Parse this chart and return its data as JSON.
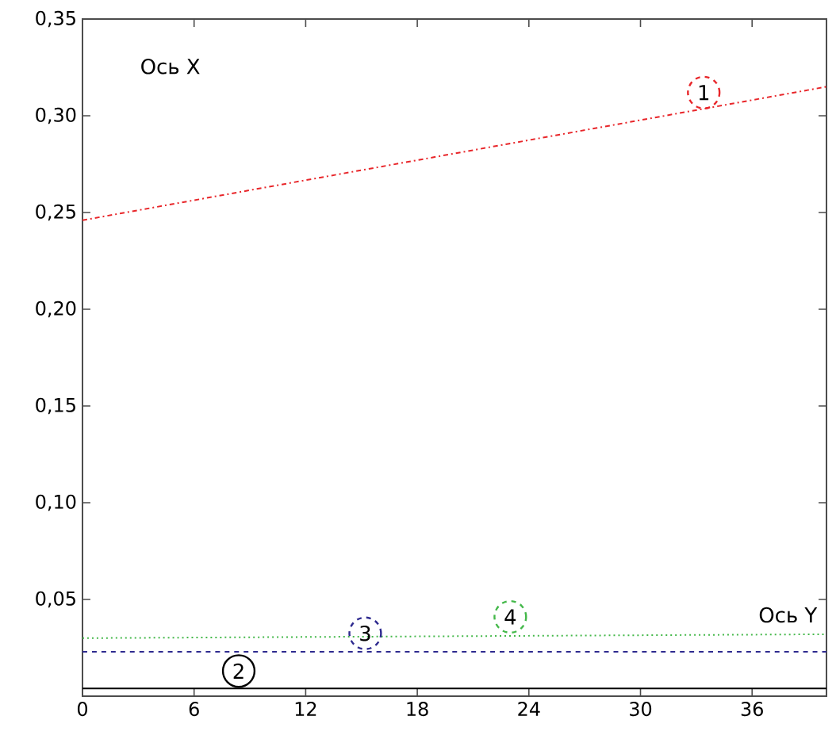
{
  "chart_data": {
    "type": "line",
    "x": [
      0,
      40
    ],
    "series": [
      {
        "color": "#e8262a",
        "line_style": "dashdot",
        "values": [
          0.246,
          0.315
        ]
      },
      {
        "color": "#000000",
        "line_style": "solid",
        "values": [
          0.004,
          0.004
        ]
      },
      {
        "color": "#2e2a8f",
        "line_style": "dashed",
        "values": [
          0.023,
          0.023
        ]
      },
      {
        "color": "#44b84a",
        "line_style": "dotted",
        "values": [
          0.03,
          0.032
        ]
      }
    ],
    "xlim": [
      0,
      40
    ],
    "ylim": [
      0,
      0.35
    ],
    "xticks": [
      0,
      6,
      12,
      18,
      24,
      30,
      36
    ],
    "yticks": [
      {
        "value": 0.05,
        "label": "0,05"
      },
      {
        "value": 0.1,
        "label": "0,10"
      },
      {
        "value": 0.15,
        "label": "0,15"
      },
      {
        "value": 0.2,
        "label": "0,20"
      },
      {
        "value": 0.25,
        "label": "0,25"
      },
      {
        "value": 0.3,
        "label": "0,30"
      },
      {
        "value": 0.35,
        "label": "0,35"
      }
    ],
    "annotations": [
      {
        "text": "1",
        "x": 33.4,
        "y": 0.312
      },
      {
        "text": "2",
        "x": 8.4,
        "y": 0.013
      },
      {
        "text": "3",
        "x": 15.2,
        "y": 0.0325
      },
      {
        "text": "4",
        "x": 23.0,
        "y": 0.041
      },
      "Ось X",
      "Ось Y"
    ],
    "grid": false
  }
}
